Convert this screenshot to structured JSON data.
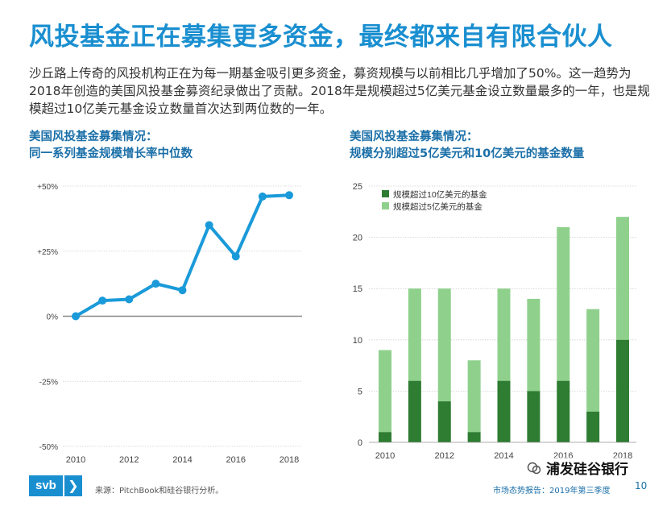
{
  "page": {
    "title": "风投基金正在募集更多资金，最终都来自有限合伙人",
    "intro": "沙丘路上传奇的风投机构正在为每一期基金吸引更多资金，募资规模与以前相比几乎增加了50%。这一趋势为2018年创造的美国风投基金募资纪录做出了贡献。2018年是规模超过5亿美元基金设立数量最多的一年，也是规模超过10亿美元基金设立数量首次达到两位数的一年。"
  },
  "left_chart": {
    "title_line1": "美国风投基金募集情况：",
    "title_line2": "同一系列基金规模增长率中位数"
  },
  "right_chart": {
    "title_line1": "美国风投基金募集情况：",
    "title_line2": "规模分别超过5亿美元和10亿美元的基金数量"
  },
  "colors": {
    "accent": "#1a8fd0",
    "line": "#1a9ad9",
    "dark_green": "#2e7d32",
    "light_green": "#8fd18c"
  },
  "chart_data": [
    {
      "type": "line",
      "title": "美国风投基金募集情况：同一系列基金规模增长率中位数",
      "x": [
        2010,
        2011,
        2012,
        2013,
        2014,
        2015,
        2016,
        2017,
        2018
      ],
      "series": [
        {
          "name": "增长率中位数",
          "values": [
            0,
            6,
            6.5,
            12.5,
            10,
            35,
            23,
            46,
            46.5
          ]
        }
      ],
      "ylim": [
        -50,
        50
      ],
      "yticks": [
        50,
        25,
        0,
        -25,
        -50
      ],
      "ytick_labels": [
        "+50%",
        "+25%",
        "0%",
        "-25%",
        "-50%"
      ],
      "xticks": [
        2010,
        2012,
        2014,
        2016,
        2018
      ],
      "xtick_labels": [
        "2010",
        "2012",
        "2014",
        "2016",
        "2018"
      ],
      "grid": true,
      "xlabel": "",
      "ylabel": ""
    },
    {
      "type": "bar",
      "stacked": true,
      "title": "美国风投基金募集情况：规模分别超过5亿美元和10亿美元的基金数量",
      "categories": [
        "2010",
        "2011",
        "2012",
        "2013",
        "2014",
        "2015",
        "2016",
        "2017",
        "2018"
      ],
      "series": [
        {
          "name": "规模超过10亿美元的基金",
          "values": [
            1,
            6,
            4,
            1,
            6,
            5,
            6,
            3,
            10
          ]
        },
        {
          "name": "规模超过5亿美元的基金",
          "totals": [
            9,
            15,
            15,
            8,
            15,
            14,
            21,
            13,
            22
          ]
        }
      ],
      "ylim": [
        0,
        25
      ],
      "yticks": [
        25,
        20,
        15,
        10,
        5,
        0
      ],
      "ytick_labels": [
        "25",
        "20",
        "15",
        "10",
        "5",
        "0"
      ],
      "xtick_labels": [
        "2010",
        "2012",
        "2014",
        "2016",
        "2018"
      ],
      "legend": "top-left",
      "grid": true
    }
  ],
  "footer": {
    "logo_text": "svb",
    "logo_arrow": "❯",
    "source": "来源：PitchBook和硅谷银行分析。",
    "report": "市场态势报告：2019年第三季度",
    "page_number": "10",
    "watermark": "浦发硅谷银行"
  }
}
